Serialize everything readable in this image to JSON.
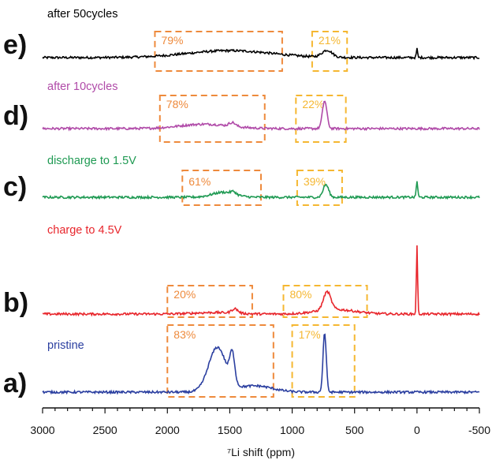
{
  "chart_data": {
    "type": "line",
    "xlabel": "⁷Li shift (ppm)",
    "xlim": [
      3000,
      -500
    ],
    "x_ticks": [
      "3000",
      "2500",
      "2000",
      "1500",
      "1000",
      "500",
      "0",
      "-500"
    ],
    "x_tick_values": [
      3000,
      2500,
      2000,
      1500,
      1000,
      500,
      0,
      -500
    ],
    "series": [
      {
        "letter": "e)",
        "name": "after 50cycles",
        "color": "#000000",
        "boxes": [
          {
            "label": "79%",
            "x_range": [
              2100,
              1080
            ],
            "color": "#ee8a3c"
          },
          {
            "label": "21%",
            "x_range": [
              840,
              560
            ],
            "color": "#f5b731"
          }
        ],
        "peaks": [
          {
            "center": 1500,
            "height": 0.55,
            "width": 340
          },
          {
            "center": 720,
            "height": 0.55,
            "width": 40
          },
          {
            "center": 0,
            "height": 0.7,
            "width": 5
          }
        ]
      },
      {
        "letter": "d)",
        "name": "after 10cycles",
        "color": "#b04aa8",
        "boxes": [
          {
            "label": "78%",
            "x_range": [
              2060,
              1220
            ],
            "color": "#ee8a3c"
          },
          {
            "label": "22%",
            "x_range": [
              970,
              570
            ],
            "color": "#f5b731"
          }
        ],
        "peaks": [
          {
            "center": 1700,
            "height": 0.35,
            "width": 200
          },
          {
            "center": 1480,
            "height": 0.3,
            "width": 25
          },
          {
            "center": 740,
            "height": 2.2,
            "width": 18
          }
        ]
      },
      {
        "letter": "c)",
        "name": "discharge to 1.5V",
        "color": "#1f9a53",
        "boxes": [
          {
            "label": "61%",
            "x_range": [
              1880,
              1250
            ],
            "color": "#ee8a3c"
          },
          {
            "label": "39%",
            "x_range": [
              960,
              600
            ],
            "color": "#f5b731"
          }
        ],
        "peaks": [
          {
            "center": 1550,
            "height": 0.4,
            "width": 90
          },
          {
            "center": 1470,
            "height": 0.2,
            "width": 20
          },
          {
            "center": 730,
            "height": 1.0,
            "width": 22
          },
          {
            "center": 0,
            "height": 1.3,
            "width": 6
          }
        ]
      },
      {
        "letter": "b)",
        "name": "charge to 4.5V",
        "color": "#e8262c",
        "boxes": [
          {
            "label": "20%",
            "x_range": [
              2000,
              1320
            ],
            "color": "#ee8a3c"
          },
          {
            "label": "80%",
            "x_range": [
              1070,
              400
            ],
            "color": "#f5b731"
          }
        ],
        "peaks": [
          {
            "center": 1620,
            "height": 0.12,
            "width": 160
          },
          {
            "center": 1460,
            "height": 0.35,
            "width": 25
          },
          {
            "center": 720,
            "height": 1.45,
            "width": 30
          },
          {
            "center": 650,
            "height": 0.35,
            "width": 160
          },
          {
            "center": 0,
            "height": 5.5,
            "width": 5
          }
        ]
      },
      {
        "letter": "a)",
        "name": "pristine",
        "color": "#2b3fa0",
        "boxes": [
          {
            "label": "83%",
            "x_range": [
              2000,
              1150
            ],
            "color": "#ee8a3c"
          },
          {
            "label": "17%",
            "x_range": [
              1000,
              500
            ],
            "color": "#f5b731"
          }
        ],
        "peaks": [
          {
            "center": 1600,
            "height": 3.5,
            "width": 70
          },
          {
            "center": 1480,
            "height": 2.3,
            "width": 20
          },
          {
            "center": 1300,
            "height": 0.5,
            "width": 140
          },
          {
            "center": 740,
            "height": 4.7,
            "width": 13
          }
        ]
      }
    ]
  }
}
